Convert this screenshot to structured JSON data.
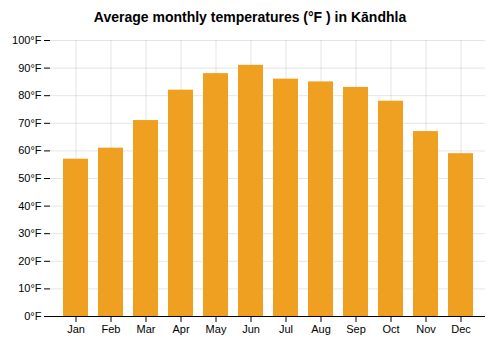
{
  "chart_data": {
    "type": "bar",
    "title": "Average monthly temperatures (°F ) in Kāndhla",
    "categories": [
      "Jan",
      "Feb",
      "Mar",
      "Apr",
      "May",
      "Jun",
      "Jul",
      "Aug",
      "Sep",
      "Oct",
      "Nov",
      "Dec"
    ],
    "values": [
      57,
      61,
      71,
      82,
      88,
      91,
      86,
      85,
      83,
      78,
      67,
      59
    ],
    "color": "#F0A020",
    "ylim": [
      0,
      100
    ],
    "yticks": [
      {
        "value": 0,
        "label": "0°F"
      },
      {
        "value": 10,
        "label": "10°F"
      },
      {
        "value": 20,
        "label": "20°F"
      },
      {
        "value": 30,
        "label": "30°F"
      },
      {
        "value": 40,
        "label": "40°F"
      },
      {
        "value": 50,
        "label": "50°F"
      },
      {
        "value": 60,
        "label": "60°F"
      },
      {
        "value": 70,
        "label": "70°F"
      },
      {
        "value": 80,
        "label": "80°F"
      },
      {
        "value": 90,
        "label": "90°F"
      },
      {
        "value": 100,
        "label": "100°F"
      }
    ],
    "grid": true
  }
}
